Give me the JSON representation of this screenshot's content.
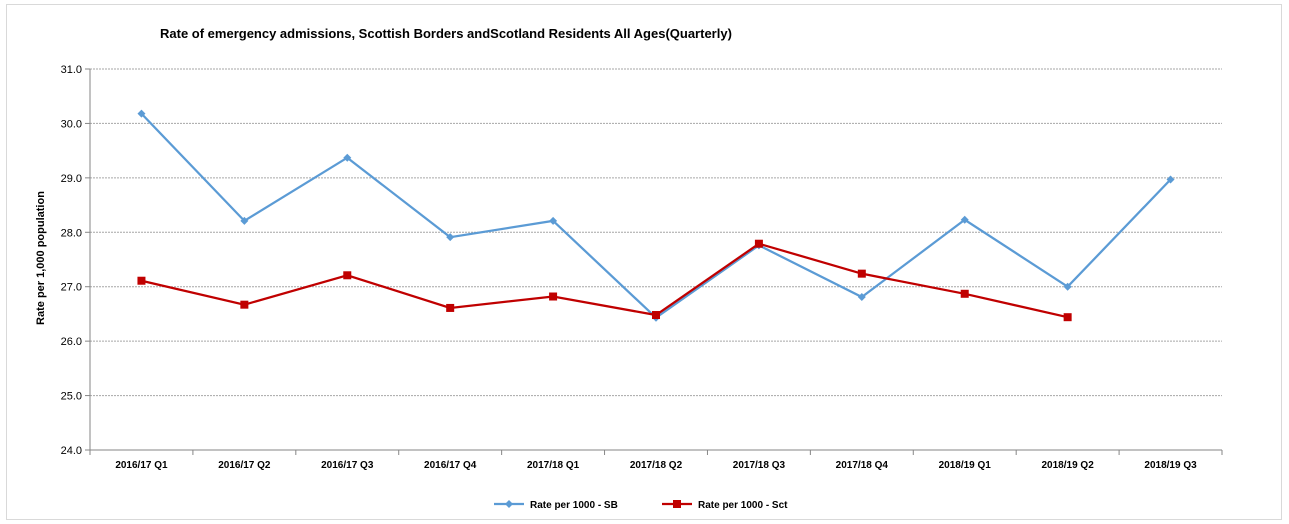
{
  "chart_data": {
    "type": "line",
    "title": "Rate of emergency admissions, Scottish Borders andScotland Residents All Ages(Quarterly)",
    "xlabel": "",
    "ylabel": "Rate per 1,000 population",
    "ylim": [
      24.0,
      31.0
    ],
    "yticks": [
      "24.0",
      "25.0",
      "26.0",
      "27.0",
      "28.0",
      "29.0",
      "30.0",
      "31.0"
    ],
    "categories": [
      "2016/17 Q1",
      "2016/17 Q2",
      "2016/17 Q3",
      "2016/17 Q4",
      "2017/18 Q1",
      "2017/18 Q2",
      "2017/18 Q3",
      "2017/18 Q4",
      "2018/19 Q1",
      "2018/19 Q2",
      "2018/19 Q3"
    ],
    "grid": true,
    "legend_position": "bottom",
    "series": [
      {
        "name": "Rate per 1000 - SB",
        "color": "#5b9bd5",
        "marker": "diamond",
        "values": [
          30.18,
          28.21,
          29.37,
          27.91,
          28.21,
          26.43,
          27.76,
          26.81,
          28.23,
          27.0,
          28.97
        ]
      },
      {
        "name": "Rate per 1000 - Sct",
        "color": "#c00000",
        "marker": "square",
        "values": [
          27.11,
          26.67,
          27.21,
          26.61,
          26.82,
          26.48,
          27.79,
          27.24,
          26.87,
          26.44,
          null
        ]
      }
    ]
  }
}
